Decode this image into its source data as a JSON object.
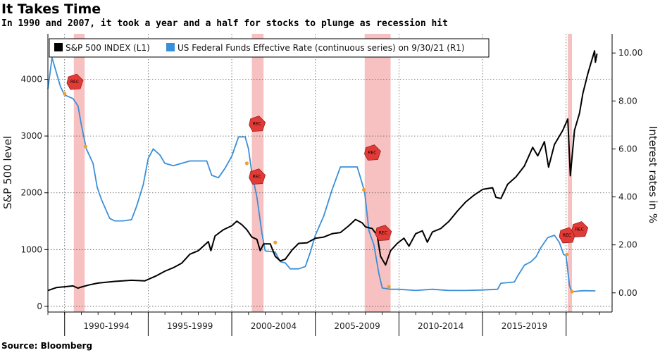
{
  "title": "It Takes Time",
  "subtitle": "In 1990 and 2007, it took a year and a half for stocks to plunge as recession hit",
  "source": "Source: Bloomberg",
  "chart_data": {
    "type": "line",
    "x_label_periods": [
      "1990-1994",
      "1995-1999",
      "2000-2004",
      "2005-2009",
      "2010-2014",
      "2015-2019"
    ],
    "ylabel_left": "S&P 500 level",
    "ylabel_right": "Interest rates in %",
    "ylim_left": [
      -100,
      4800
    ],
    "ylim_right": [
      -0.8,
      10.8
    ],
    "left_ticks": [
      0,
      1000,
      2000,
      3000,
      4000
    ],
    "right_ticks": [
      "0.00",
      "2.00",
      "4.00",
      "6.00",
      "8.00",
      "10.00"
    ],
    "legend": {
      "sp500": "S&P 500 INDEX (L1)",
      "fedfunds": "US Federal Funds Effective Rate (continuous series)  on 9/30/21 (R1)"
    },
    "colors": {
      "sp500": "#000000",
      "fedfunds": "#3a8fd9",
      "recession": "#f6b6b6",
      "rec_marker": "#e23a36",
      "orange": "#f0a030"
    },
    "recession_label": "REC",
    "recessions": [
      [
        1990.55,
        1991.2
      ],
      [
        2001.2,
        2001.9
      ],
      [
        2007.95,
        2009.5
      ],
      [
        2020.1,
        2020.35
      ]
    ],
    "series": [
      {
        "name": "S&P 500 INDEX (L1)",
        "axis": "left",
        "points": [
          [
            1989.0,
            280
          ],
          [
            1989.5,
            330
          ],
          [
            1990.0,
            345
          ],
          [
            1990.5,
            360
          ],
          [
            1990.8,
            320
          ],
          [
            1991.0,
            340
          ],
          [
            1991.5,
            380
          ],
          [
            1992.0,
            410
          ],
          [
            1993.0,
            440
          ],
          [
            1994.0,
            460
          ],
          [
            1994.8,
            450
          ],
          [
            1995.5,
            540
          ],
          [
            1996.0,
            620
          ],
          [
            1996.5,
            680
          ],
          [
            1997.0,
            760
          ],
          [
            1997.5,
            920
          ],
          [
            1998.0,
            980
          ],
          [
            1998.6,
            1140
          ],
          [
            1998.75,
            980
          ],
          [
            1999.0,
            1240
          ],
          [
            1999.5,
            1350
          ],
          [
            2000.0,
            1420
          ],
          [
            2000.3,
            1500
          ],
          [
            2000.6,
            1440
          ],
          [
            2000.9,
            1350
          ],
          [
            2001.2,
            1220
          ],
          [
            2001.5,
            1180
          ],
          [
            2001.7,
            980
          ],
          [
            2001.9,
            1100
          ],
          [
            2002.3,
            1100
          ],
          [
            2002.6,
            880
          ],
          [
            2002.9,
            800
          ],
          [
            2003.2,
            830
          ],
          [
            2003.6,
            990
          ],
          [
            2004.0,
            1110
          ],
          [
            2004.5,
            1120
          ],
          [
            2005.0,
            1200
          ],
          [
            2005.5,
            1220
          ],
          [
            2006.0,
            1280
          ],
          [
            2006.5,
            1300
          ],
          [
            2007.0,
            1420
          ],
          [
            2007.4,
            1530
          ],
          [
            2007.8,
            1470
          ],
          [
            2008.0,
            1400
          ],
          [
            2008.4,
            1370
          ],
          [
            2008.7,
            1250
          ],
          [
            2008.9,
            880
          ],
          [
            2009.2,
            730
          ],
          [
            2009.5,
            980
          ],
          [
            2009.9,
            1110
          ],
          [
            2010.3,
            1200
          ],
          [
            2010.6,
            1060
          ],
          [
            2011.0,
            1280
          ],
          [
            2011.4,
            1330
          ],
          [
            2011.7,
            1130
          ],
          [
            2012.0,
            1310
          ],
          [
            2012.5,
            1370
          ],
          [
            2013.0,
            1500
          ],
          [
            2013.5,
            1680
          ],
          [
            2014.0,
            1840
          ],
          [
            2014.5,
            1960
          ],
          [
            2015.0,
            2060
          ],
          [
            2015.6,
            2090
          ],
          [
            2015.8,
            1920
          ],
          [
            2016.1,
            1900
          ],
          [
            2016.5,
            2150
          ],
          [
            2017.0,
            2280
          ],
          [
            2017.5,
            2470
          ],
          [
            2018.0,
            2800
          ],
          [
            2018.3,
            2650
          ],
          [
            2018.7,
            2900
          ],
          [
            2018.95,
            2450
          ],
          [
            2019.3,
            2850
          ],
          [
            2019.8,
            3100
          ],
          [
            2020.1,
            3300
          ],
          [
            2020.25,
            2300
          ],
          [
            2020.5,
            3100
          ],
          [
            2020.8,
            3400
          ],
          [
            2021.0,
            3750
          ],
          [
            2021.3,
            4100
          ],
          [
            2021.5,
            4300
          ],
          [
            2021.7,
            4500
          ],
          [
            2021.75,
            4300
          ],
          [
            2021.85,
            4450
          ]
        ]
      },
      {
        "name": "US Federal Funds Effective Rate (continuous series) on 9/30/21 (R1)",
        "axis": "right",
        "points": [
          [
            1989.0,
            8.5
          ],
          [
            1989.25,
            9.8
          ],
          [
            1989.5,
            9.2
          ],
          [
            1989.75,
            8.6
          ],
          [
            1990.0,
            8.25
          ],
          [
            1990.5,
            8.1
          ],
          [
            1990.8,
            7.8
          ],
          [
            1991.0,
            7.0
          ],
          [
            1991.3,
            6.0
          ],
          [
            1991.7,
            5.4
          ],
          [
            1991.95,
            4.4
          ],
          [
            1992.2,
            3.9
          ],
          [
            1992.7,
            3.1
          ],
          [
            1993.0,
            3.0
          ],
          [
            1993.5,
            3.0
          ],
          [
            1994.0,
            3.05
          ],
          [
            1994.3,
            3.6
          ],
          [
            1994.7,
            4.5
          ],
          [
            1995.0,
            5.6
          ],
          [
            1995.3,
            6.0
          ],
          [
            1995.7,
            5.75
          ],
          [
            1996.0,
            5.4
          ],
          [
            1996.5,
            5.3
          ],
          [
            1997.0,
            5.4
          ],
          [
            1997.5,
            5.5
          ],
          [
            1998.0,
            5.5
          ],
          [
            1998.5,
            5.5
          ],
          [
            1998.8,
            4.9
          ],
          [
            1999.2,
            4.8
          ],
          [
            1999.6,
            5.2
          ],
          [
            2000.0,
            5.7
          ],
          [
            2000.4,
            6.5
          ],
          [
            2000.8,
            6.5
          ],
          [
            2001.0,
            6.0
          ],
          [
            2001.2,
            5.0
          ],
          [
            2001.5,
            4.0
          ],
          [
            2001.8,
            2.5
          ],
          [
            2002.0,
            1.75
          ],
          [
            2002.6,
            1.7
          ],
          [
            2002.9,
            1.3
          ],
          [
            2003.2,
            1.25
          ],
          [
            2003.5,
            1.0
          ],
          [
            2004.0,
            1.0
          ],
          [
            2004.4,
            1.1
          ],
          [
            2004.7,
            1.7
          ],
          [
            2005.0,
            2.4
          ],
          [
            2005.5,
            3.2
          ],
          [
            2006.0,
            4.3
          ],
          [
            2006.5,
            5.25
          ],
          [
            2007.0,
            5.25
          ],
          [
            2007.5,
            5.25
          ],
          [
            2007.7,
            4.8
          ],
          [
            2007.95,
            4.2
          ],
          [
            2008.2,
            2.6
          ],
          [
            2008.5,
            2.0
          ],
          [
            2008.8,
            0.8
          ],
          [
            2009.0,
            0.2
          ],
          [
            2009.5,
            0.15
          ],
          [
            2010.0,
            0.15
          ],
          [
            2011.0,
            0.1
          ],
          [
            2012.0,
            0.15
          ],
          [
            2013.0,
            0.1
          ],
          [
            2014.0,
            0.1
          ],
          [
            2015.0,
            0.12
          ],
          [
            2015.9,
            0.15
          ],
          [
            2016.1,
            0.4
          ],
          [
            2016.9,
            0.45
          ],
          [
            2017.1,
            0.7
          ],
          [
            2017.5,
            1.15
          ],
          [
            2017.9,
            1.3
          ],
          [
            2018.2,
            1.5
          ],
          [
            2018.5,
            1.9
          ],
          [
            2018.9,
            2.3
          ],
          [
            2019.3,
            2.4
          ],
          [
            2019.6,
            2.1
          ],
          [
            2019.85,
            1.6
          ],
          [
            2020.0,
            1.55
          ],
          [
            2020.2,
            0.3
          ],
          [
            2020.35,
            0.05
          ],
          [
            2021.0,
            0.09
          ],
          [
            2021.75,
            0.08
          ]
        ]
      }
    ],
    "rec_markers": [
      {
        "x": 1990.6,
        "axis": "right",
        "y": 8.8
      },
      {
        "x": 2001.5,
        "axis": "right",
        "y": 7.05
      },
      {
        "x": 2001.5,
        "axis": "right",
        "y": 4.85
      },
      {
        "x": 2008.4,
        "axis": "right",
        "y": 5.85
      },
      {
        "x": 2009.05,
        "axis": "right",
        "y": 2.5
      },
      {
        "x": 2020.05,
        "axis": "right",
        "y": 2.4
      },
      {
        "x": 2020.8,
        "axis": "right",
        "y": 2.65
      }
    ],
    "highlight_points": [
      {
        "x": 1990.0,
        "axis": "right",
        "y": 8.3
      },
      {
        "x": 1991.25,
        "axis": "right",
        "y": 6.1
      },
      {
        "x": 2000.9,
        "axis": "right",
        "y": 5.4
      },
      {
        "x": 2002.6,
        "axis": "right",
        "y": 2.1
      },
      {
        "x": 2007.9,
        "axis": "right",
        "y": 4.3
      },
      {
        "x": 2009.4,
        "axis": "right",
        "y": 0.25
      },
      {
        "x": 2020.05,
        "axis": "right",
        "y": 1.6
      },
      {
        "x": 2020.35,
        "axis": "right",
        "y": 0.05
      }
    ]
  }
}
